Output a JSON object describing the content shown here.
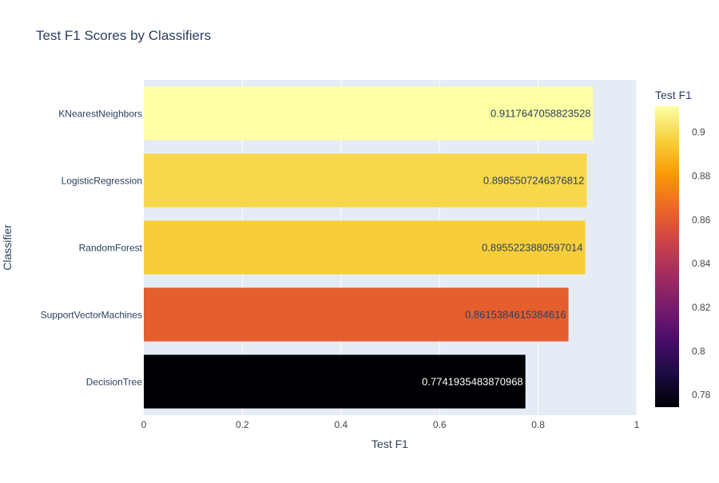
{
  "chart_data": {
    "type": "bar",
    "orientation": "horizontal",
    "title": "Test F1 Scores by Classifiers",
    "xlabel": "Test F1",
    "ylabel": "Classifier",
    "xlim": [
      0,
      1
    ],
    "xticks": [
      "0",
      "0.2",
      "0.4",
      "0.6",
      "0.8",
      "1"
    ],
    "xtick_values": [
      0,
      0.2,
      0.4,
      0.6,
      0.8,
      1
    ],
    "grid": true,
    "categories": [
      "KNearestNeighbors",
      "LogisticRegression",
      "RandomForest",
      "SupportVectorMachines",
      "DecisionTree"
    ],
    "values": [
      0.9117647058823528,
      0.8985507246376812,
      0.8955223880597014,
      0.8615384615384616,
      0.7741935483870968
    ],
    "value_labels": [
      "0.9117647058823528",
      "0.8985507246376812",
      "0.8955223880597014",
      "0.8615384615384616",
      "0.7741935483870968"
    ],
    "colorbar": {
      "title": "Test F1",
      "range": [
        0.7741935483870968,
        0.9117647058823528
      ],
      "ticks": [
        "0.78",
        "0.8",
        "0.82",
        "0.84",
        "0.86",
        "0.88",
        "0.9"
      ],
      "tick_values": [
        0.78,
        0.8,
        0.82,
        0.84,
        0.86,
        0.88,
        0.9
      ],
      "colorscale": [
        "#000004",
        "#1b0c41",
        "#4a0c6b",
        "#781c6d",
        "#a52c60",
        "#cf4446",
        "#ed6925",
        "#fb9b06",
        "#f7d13d",
        "#fcffa4"
      ]
    },
    "colors": {
      "plot_background": "#e5ecf6",
      "gridline": "#ffffff",
      "text": "#2a3f5f",
      "axis_text": "#444444"
    }
  }
}
